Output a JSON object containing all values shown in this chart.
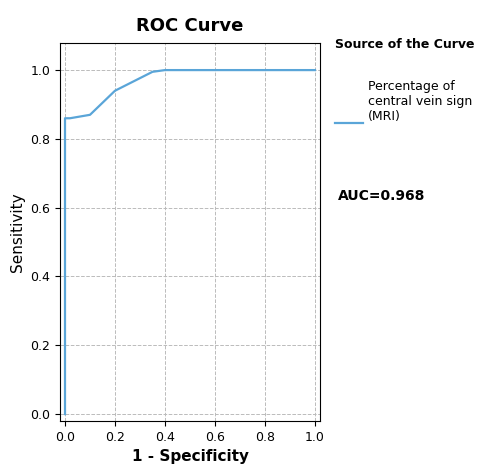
{
  "title": "ROC Curve",
  "xlabel": "1 - Specificity",
  "ylabel": "Sensitivity",
  "curve_color": "#5aa5d8",
  "curve_x": [
    0.0,
    0.0,
    0.02,
    0.1,
    0.2,
    0.35,
    0.4,
    0.6,
    0.8,
    1.0
  ],
  "curve_y": [
    0.0,
    0.86,
    0.86,
    0.87,
    0.94,
    0.995,
    1.0,
    1.0,
    1.0,
    1.0
  ],
  "xlim": [
    -0.02,
    1.02
  ],
  "ylim": [
    -0.02,
    1.08
  ],
  "xticks": [
    0.0,
    0.2,
    0.4,
    0.6,
    0.8,
    1.0
  ],
  "yticks": [
    0.0,
    0.2,
    0.4,
    0.6,
    0.8,
    1.0
  ],
  "legend_title": "Source of the Curve",
  "legend_label": "Percentage of\ncentral vein sign\n(MRI)",
  "auc_text": "AUC=0.968",
  "grid_color": "#bbbbbb",
  "background_color": "#ffffff",
  "title_fontsize": 13,
  "axis_label_fontsize": 11,
  "tick_fontsize": 9,
  "legend_title_fontsize": 9,
  "legend_fontsize": 9,
  "auc_fontsize": 10
}
